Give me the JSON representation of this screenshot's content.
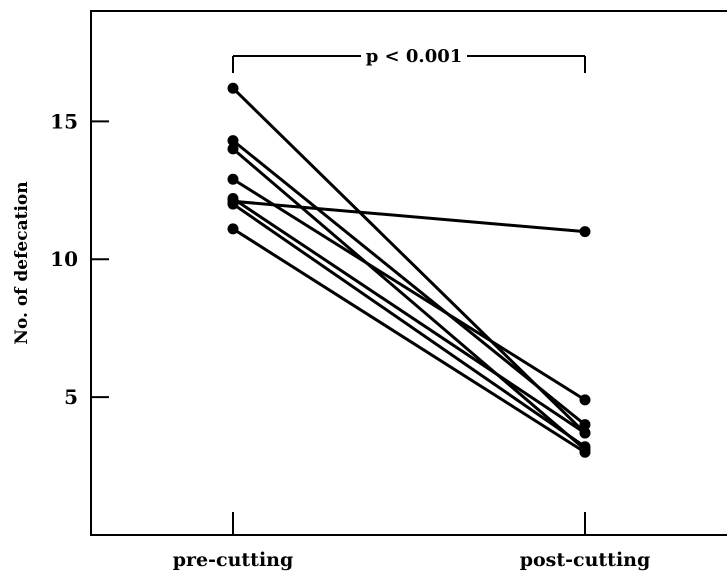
{
  "chart_data": {
    "type": "line",
    "title": "",
    "xlabel": "",
    "ylabel": "No. of defecation",
    "categories": [
      "pre-cutting",
      "post-cutting"
    ],
    "yticks": [
      5,
      10,
      15
    ],
    "ylim": [
      0,
      19
    ],
    "grid": false,
    "significance": {
      "label": "p < 0.001",
      "between": [
        "pre-cutting",
        "post-cutting"
      ]
    },
    "series": [
      {
        "values": [
          16.2,
          3.7
        ]
      },
      {
        "values": [
          14.3,
          4.0
        ]
      },
      {
        "values": [
          14.0,
          3.1
        ]
      },
      {
        "values": [
          12.9,
          4.9
        ]
      },
      {
        "values": [
          12.2,
          3.7
        ]
      },
      {
        "values": [
          12.1,
          11.0
        ]
      },
      {
        "values": [
          12.0,
          3.2
        ]
      },
      {
        "values": [
          11.1,
          3.0
        ]
      }
    ],
    "colors": {
      "line": "#000000",
      "marker": "#000000"
    }
  }
}
